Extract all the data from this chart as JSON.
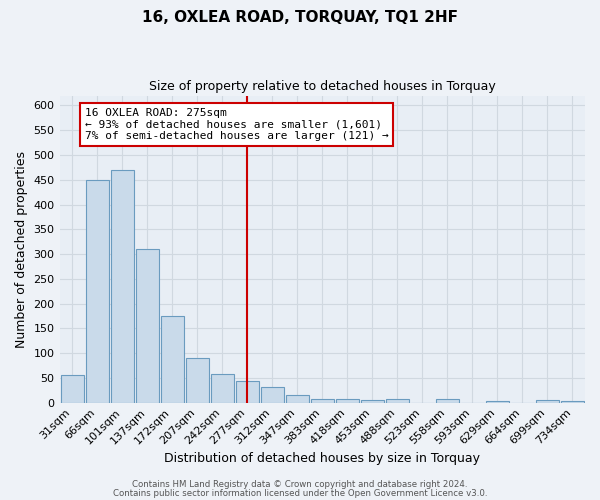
{
  "title": "16, OXLEA ROAD, TORQUAY, TQ1 2HF",
  "subtitle": "Size of property relative to detached houses in Torquay",
  "xlabel": "Distribution of detached houses by size in Torquay",
  "ylabel": "Number of detached properties",
  "bar_labels": [
    "31sqm",
    "66sqm",
    "101sqm",
    "137sqm",
    "172sqm",
    "207sqm",
    "242sqm",
    "277sqm",
    "312sqm",
    "347sqm",
    "383sqm",
    "418sqm",
    "453sqm",
    "488sqm",
    "523sqm",
    "558sqm",
    "593sqm",
    "629sqm",
    "664sqm",
    "699sqm",
    "734sqm"
  ],
  "bar_values": [
    55,
    450,
    470,
    310,
    175,
    90,
    58,
    43,
    32,
    15,
    7,
    8,
    6,
    7,
    0,
    8,
    0,
    3,
    0,
    5,
    3
  ],
  "bar_color": "#c9daea",
  "bar_edge_color": "#6a9bbf",
  "vline_x": 7,
  "vline_color": "#cc0000",
  "annotation_title": "16 OXLEA ROAD: 275sqm",
  "annotation_line1": "← 93% of detached houses are smaller (1,601)",
  "annotation_line2": "7% of semi-detached houses are larger (121) →",
  "annotation_box_facecolor": "#ffffff",
  "annotation_box_edgecolor": "#cc0000",
  "ylim": [
    0,
    620
  ],
  "yticks": [
    0,
    50,
    100,
    150,
    200,
    250,
    300,
    350,
    400,
    450,
    500,
    550,
    600
  ],
  "background_color": "#eef2f7",
  "plot_bg_color": "#e8eef5",
  "grid_color": "#d0d8e0",
  "footer1": "Contains HM Land Registry data © Crown copyright and database right 2024.",
  "footer2": "Contains public sector information licensed under the Open Government Licence v3.0."
}
